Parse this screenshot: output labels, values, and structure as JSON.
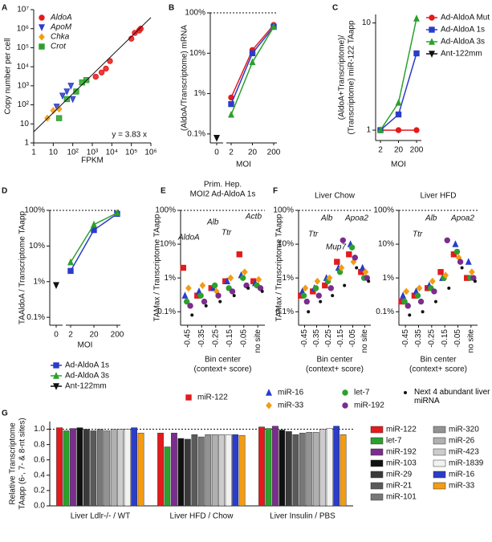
{
  "chart_data": [
    {
      "type": "scatter",
      "label": "A",
      "xlabel": "FPKM",
      "ylabel": "Copy number per cell",
      "annotation": "y = 3.83 x",
      "fit_slope": 3.83,
      "xlog": true,
      "ylog": true,
      "xlim": [
        1,
        1000000
      ],
      "ylim": [
        1,
        10000000
      ],
      "xticks": [
        1,
        10,
        {
          "value": 100,
          "label": "10²"
        },
        {
          "value": 1000,
          "label": "10³"
        },
        {
          "value": 10000,
          "label": "10⁴"
        },
        {
          "value": 100000,
          "label": "10⁵"
        },
        {
          "value": 1000000,
          "label": "10⁶"
        }
      ],
      "yticks": [
        1,
        10,
        {
          "value": 100,
          "label": "10²"
        },
        {
          "value": 1000,
          "label": "10³"
        },
        {
          "value": 10000,
          "label": "10⁴"
        },
        {
          "value": 100000,
          "label": "10⁵"
        },
        {
          "value": 1000000,
          "label": "10⁶"
        },
        {
          "value": 10000000,
          "label": "10⁷"
        }
      ],
      "legend": "top-left",
      "series": [
        {
          "name": "AldoA",
          "color": "#e41a1c",
          "marker": "circle",
          "x": [
            1500,
            3000,
            5000,
            8000,
            100000,
            150000,
            250000,
            300000
          ],
          "values": [
            3000,
            5000,
            8000,
            20000,
            300000,
            600000,
            800000,
            1000000
          ]
        },
        {
          "name": "ApoM",
          "color": "#2b3cc9",
          "marker": "triangle-down",
          "x": [
            15,
            30,
            50,
            80,
            100
          ],
          "values": [
            80,
            300,
            500,
            1000,
            200
          ]
        },
        {
          "name": "Chka",
          "color": "#f39c12",
          "marker": "diamond",
          "x": [
            5,
            10,
            20
          ],
          "values": [
            20,
            50,
            60
          ]
        },
        {
          "name": "Crot",
          "color": "#2ca02c",
          "marker": "square",
          "x": [
            20,
            50,
            150,
            300,
            500
          ],
          "values": [
            20,
            200,
            500,
            1500,
            2000
          ]
        }
      ]
    },
    {
      "type": "line",
      "label": "B",
      "xlabel": "MOI",
      "ylabel": "(AldoA/Transcriptome) mRNA",
      "categories": [
        "0",
        "2",
        "20",
        "200"
      ],
      "x_axis_break": true,
      "ylog": true,
      "ylim": [
        0.06,
        100
      ],
      "yticks": [
        {
          "value": 0.1,
          "label": "0.1%"
        },
        {
          "value": 1,
          "label": "1%"
        },
        {
          "value": 10,
          "label": "10%"
        },
        {
          "value": 100,
          "label": "100%"
        }
      ],
      "reference_line": 100,
      "series": [
        {
          "color": "#e41a1c",
          "marker": "circle",
          "values": [
            null,
            0.8,
            12,
            50
          ]
        },
        {
          "color": "#2b3cc9",
          "marker": "square",
          "values": [
            null,
            0.55,
            10,
            45
          ]
        },
        {
          "color": "#2ca02c",
          "marker": "triangle",
          "values": [
            null,
            0.3,
            6,
            45
          ]
        },
        {
          "color": "#111111",
          "marker": "triangle-down",
          "values": [
            0.08,
            null,
            null,
            null
          ]
        }
      ]
    },
    {
      "type": "line",
      "label": "C",
      "xlabel": "MOI",
      "ylabel": [
        "(AldoA+Transcriptome)/",
        "(Transcriptome) miR-122 TAapp"
      ],
      "categories": [
        "2",
        "20",
        "200"
      ],
      "ylog": true,
      "ylim": [
        0.8,
        12
      ],
      "yticks": [
        1,
        10
      ],
      "legend": "right",
      "series": [
        {
          "name": "Ad-AldoA Mut",
          "color": "#e41a1c",
          "marker": "circle",
          "values": [
            1,
            1,
            1
          ]
        },
        {
          "name": "Ad-AldoA 1s",
          "color": "#2b3cc9",
          "marker": "square",
          "values": [
            1,
            1.4,
            5.2
          ]
        },
        {
          "name": "Ad-AldoA 3s",
          "color": "#2ca02c",
          "marker": "triangle",
          "values": [
            1,
            1.8,
            11
          ]
        },
        {
          "name": "Ant-122mm",
          "color": "#111111",
          "marker": "triangle-down",
          "values": [
            null,
            null,
            null
          ]
        }
      ]
    },
    {
      "type": "line",
      "label": "D",
      "xlabel": "MOI",
      "ylabel": "TAAldoA / Transcriptome TAapp",
      "categories": [
        "0",
        "2",
        "20",
        "200"
      ],
      "x_axis_break": true,
      "ylog": true,
      "ylim": [
        0.06,
        100
      ],
      "yticks": [
        {
          "value": 0.1,
          "label": "0.1%"
        },
        {
          "value": 1,
          "label": "1%"
        },
        {
          "value": 10,
          "label": "10%"
        },
        {
          "value": 100,
          "label": "100%"
        }
      ],
      "reference_line": 100,
      "legend": "bottom",
      "series": [
        {
          "name": "Ad-AldoA 1s",
          "color": "#2b3cc9",
          "marker": "square",
          "values": [
            null,
            2,
            28,
            80
          ]
        },
        {
          "name": "Ad-AldoA 3s",
          "color": "#2ca02c",
          "marker": "triangle",
          "values": [
            null,
            3.5,
            40,
            85
          ]
        },
        {
          "name": "Ant-122mm",
          "color": "#111111",
          "marker": "triangle-down",
          "values": [
            0.8,
            null,
            null,
            null
          ]
        }
      ]
    },
    {
      "type": "strip",
      "label": "E",
      "title": [
        "Prim. Hep.",
        "MOI2 Ad-AldoA 1s"
      ],
      "xlabel": [
        "Bin center",
        "(context+ score)"
      ],
      "ylabel": "TAMax / Transcriptome TAapp",
      "categories": [
        "-0.45",
        "-0.35",
        "-0.25",
        "-0.15",
        "-0.05",
        "no site"
      ],
      "ylog": true,
      "ylim": [
        0.04,
        100
      ],
      "yticks": [
        {
          "value": 0.1,
          "label": "0.1%"
        },
        {
          "value": 1,
          "label": "1%"
        },
        {
          "value": 10,
          "label": "10%"
        },
        {
          "value": 100,
          "label": "100%"
        }
      ],
      "reference_line": 100,
      "annotations": [
        "AldoA",
        "Alb",
        "Ttr",
        "Actb"
      ],
      "legend": "bottom",
      "series": [
        {
          "name": "miR-122",
          "color": "#e41a1c",
          "marker": "square",
          "values": [
            2,
            0.3,
            0.5,
            0.8,
            5,
            0.8
          ]
        },
        {
          "name": "miR-16",
          "color": "#2b3cc9",
          "marker": "triangle",
          "values": [
            0.3,
            0.4,
            0.5,
            0.8,
            1.2,
            0.7
          ]
        },
        {
          "name": "let-7",
          "color": "#2ca02c",
          "marker": "circle",
          "values": [
            0.2,
            0.3,
            0.6,
            0.5,
            1,
            0.6
          ]
        },
        {
          "name": "miR-33",
          "color": "#f39c12",
          "marker": "diamond",
          "values": [
            0.5,
            0.6,
            0.4,
            1,
            1.5,
            0.9
          ]
        },
        {
          "name": "miR-192",
          "color": "#7b2d8e",
          "marker": "circle",
          "values": [
            0.15,
            0.2,
            0.3,
            0.4,
            0.6,
            0.5
          ]
        },
        {
          "name": "Next 4 abundant liver miRNA",
          "color": "#111111",
          "marker": "dot",
          "values": [
            0.08,
            0.15,
            0.2,
            0.3,
            0.5,
            0.4
          ]
        }
      ]
    },
    {
      "type": "strip",
      "label": "F",
      "title": "Liver Chow",
      "xlabel": [
        "Bin center",
        "(context+ score)"
      ],
      "ylabel": "TAMax / Transcriptome TAapp",
      "categories": [
        "-0.45",
        "-0.35",
        "-0.25",
        "-0.15",
        "-0.05",
        "no site"
      ],
      "ylog": true,
      "ylim": [
        0.04,
        100
      ],
      "yticks": [
        {
          "value": 0.1,
          "label": "0.1%"
        },
        {
          "value": 1,
          "label": "1%"
        },
        {
          "value": 10,
          "label": "10%"
        },
        {
          "value": 100,
          "label": "100%"
        }
      ],
      "reference_line": 100,
      "annotations": [
        "Alb",
        "Apoa2",
        "Ttr",
        "Mup7"
      ],
      "series": [
        {
          "color": "#e41a1c",
          "marker": "square",
          "values": [
            0.3,
            0.4,
            0.6,
            3,
            5,
            1.5
          ]
        },
        {
          "color": "#2b3cc9",
          "marker": "triangle",
          "values": [
            0.4,
            0.5,
            1,
            2,
            10,
            2
          ]
        },
        {
          "color": "#2ca02c",
          "marker": "circle",
          "values": [
            0.3,
            0.5,
            0.8,
            1.5,
            8,
            1
          ]
        },
        {
          "color": "#f39c12",
          "marker": "diamond",
          "values": [
            0.5,
            0.8,
            1,
            2,
            3,
            1.5
          ]
        },
        {
          "color": "#7b2d8e",
          "marker": "circle",
          "values": [
            0.2,
            0.3,
            0.5,
            13,
            4,
            1
          ]
        },
        {
          "color": "#111111",
          "marker": "dot",
          "values": [
            0.1,
            0.2,
            0.3,
            0.6,
            2,
            0.8
          ]
        }
      ]
    },
    {
      "type": "strip",
      "title": "Liver HFD",
      "xlabel": [
        "Bin center",
        "(context+ score)"
      ],
      "categories": [
        "-0.45",
        "-0.35",
        "-0.25",
        "-0.15",
        "-0.05",
        "no site"
      ],
      "ylog": true,
      "ylim": [
        0.04,
        100
      ],
      "yticks": [
        {
          "value": 0.1,
          "label": "0.1%"
        },
        {
          "value": 1,
          "label": "1%"
        },
        {
          "value": 10,
          "label": "10%"
        },
        {
          "value": 100,
          "label": "100%"
        }
      ],
      "reference_line": 100,
      "annotations": [
        "Alb",
        "Apoa2",
        "Ttr"
      ],
      "series": [
        {
          "color": "#e41a1c",
          "marker": "square",
          "values": [
            0.2,
            0.3,
            0.5,
            1.5,
            5,
            1
          ]
        },
        {
          "color": "#2b3cc9",
          "marker": "triangle",
          "values": [
            0.3,
            0.4,
            0.6,
            1,
            10,
            3
          ]
        },
        {
          "color": "#2ca02c",
          "marker": "circle",
          "values": [
            0.2,
            0.3,
            0.5,
            1,
            6,
            1
          ]
        },
        {
          "color": "#f39c12",
          "marker": "diamond",
          "values": [
            0.4,
            0.5,
            0.8,
            1.2,
            4,
            1.5
          ]
        },
        {
          "color": "#7b2d8e",
          "marker": "circle",
          "values": [
            0.15,
            0.2,
            0.4,
            13,
            3,
            1
          ]
        },
        {
          "color": "#111111",
          "marker": "dot",
          "values": [
            0.08,
            0.1,
            0.2,
            0.5,
            2,
            0.8
          ]
        }
      ]
    },
    {
      "type": "bar",
      "label": "G",
      "ylabel": [
        "Relative Transcriptome",
        "TAapp (6-, 7- & 8-nt sites)"
      ],
      "categories": [
        "Liver Ldlr-/- / WT",
        "Liver HFD / Chow",
        "Liver Insulin / PBS"
      ],
      "ylim": [
        0,
        1.1
      ],
      "yticks": [
        {
          "value": 0,
          "label": "0.0"
        },
        0.2,
        0.4,
        0.6,
        0.8,
        {
          "value": 1,
          "label": "1.0"
        }
      ],
      "reference_line": 1,
      "legend": "right",
      "series": [
        {
          "name": "miR-122",
          "color": "#e41a1c",
          "values": [
            1.02,
            0.95,
            1.03
          ]
        },
        {
          "name": "let-7",
          "color": "#2ca02c",
          "values": [
            0.98,
            0.77,
            1.01
          ]
        },
        {
          "name": "miR-192",
          "color": "#7b2d8e",
          "values": [
            1.01,
            0.95,
            1.04
          ]
        },
        {
          "name": "miR-103",
          "color": "#111111",
          "values": [
            1.02,
            0.88,
            0.99
          ]
        },
        {
          "name": "miR-29",
          "color": "#3a3a3a",
          "values": [
            1.0,
            0.87,
            0.97
          ]
        },
        {
          "name": "miR-21",
          "color": "#5a5a5a",
          "values": [
            0.98,
            0.93,
            0.93
          ]
        },
        {
          "name": "miR-101",
          "color": "#777777",
          "values": [
            1.0,
            0.9,
            0.95
          ]
        },
        {
          "name": "miR-320",
          "color": "#939393",
          "values": [
            0.98,
            0.93,
            0.96
          ]
        },
        {
          "name": "miR-26",
          "color": "#b0b0b0",
          "values": [
            1.0,
            0.93,
            0.96
          ]
        },
        {
          "name": "miR-423",
          "color": "#cccccc",
          "values": [
            1.0,
            0.93,
            1.0
          ]
        },
        {
          "name": "miR-1839",
          "color": "#f2f2f2",
          "values": [
            1.0,
            0.93,
            1.01
          ]
        },
        {
          "name": "miR-16",
          "color": "#2b3cc9",
          "values": [
            1.02,
            0.93,
            1.04
          ]
        },
        {
          "name": "miR-33",
          "color": "#f39c12",
          "values": [
            0.95,
            0.92,
            0.93
          ]
        }
      ]
    }
  ]
}
